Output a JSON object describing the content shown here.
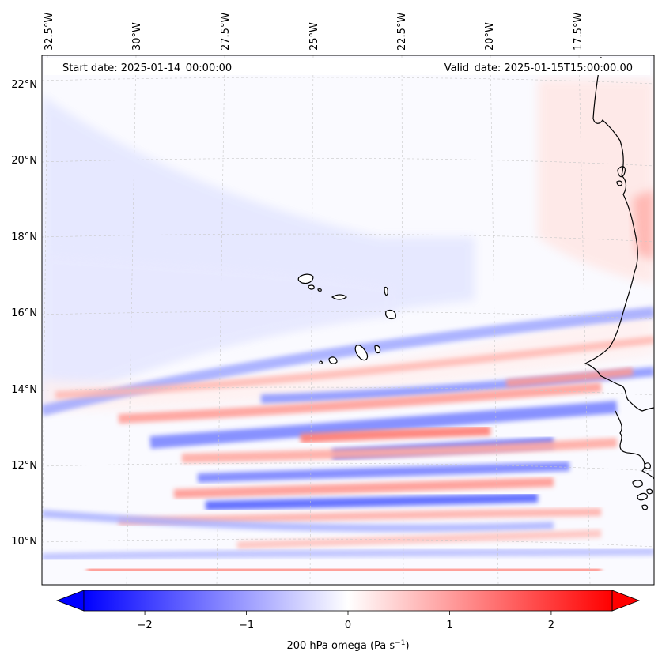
{
  "header": {
    "start_date": "Start date: 2025-01-14_00:00:00",
    "valid_date": "Valid_date: 2025-01-15T15:00:00.00"
  },
  "longitude_labels": [
    "32.5°W",
    "30°W",
    "27.5°W",
    "25°W",
    "22.5°W",
    "20°W",
    "17.5°W"
  ],
  "latitude_labels": [
    "22°N",
    "20°N",
    "18°N",
    "16°N",
    "14°N",
    "12°N",
    "10°N"
  ],
  "colorbar": {
    "ticks": [
      "−2",
      "−1",
      "0",
      "1",
      "2"
    ],
    "tick_values": [
      -2,
      -1,
      0,
      1,
      2
    ],
    "range": [
      -2.6,
      2.6
    ],
    "colors": {
      "negative": "#0000ff",
      "zero": "#ffffff",
      "positive": "#ff0000"
    },
    "label_text": "200 hPa omega (Pa s",
    "label_superscript": "−1",
    "label_suffix": ")"
  },
  "map": {
    "field": "200 hPa omega",
    "coastline_color": "#000000",
    "gridline_color": "#cccccc"
  }
}
